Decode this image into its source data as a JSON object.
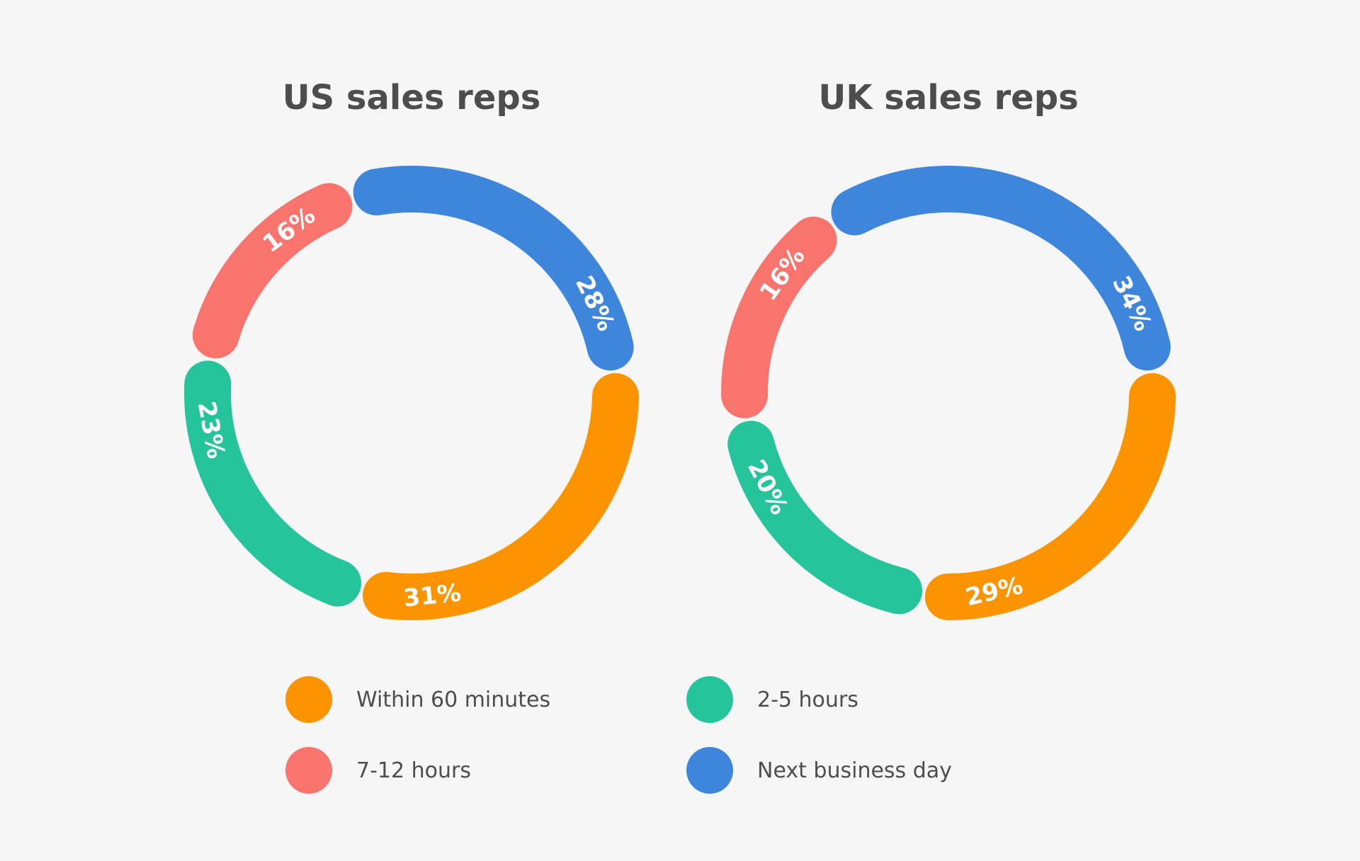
{
  "colors": {
    "background": "#f6f6f6",
    "title": "#4d4d4d",
    "slice_label": "#ffffff"
  },
  "legend": [
    {
      "label": "Within 60 minutes",
      "color": "#fb9400"
    },
    {
      "label": "2-5 hours",
      "color": "#26c49b"
    },
    {
      "label": "7-12 hours",
      "color": "#fa746e"
    },
    {
      "label": "Next business day",
      "color": "#3d86dc"
    }
  ],
  "chart_data": [
    {
      "type": "pie",
      "style": "donut",
      "title": "US sales reps",
      "categories": [
        "Within 60 minutes",
        "2-5 hours",
        "7-12 hours",
        "Next business day"
      ],
      "values": [
        31,
        23,
        16,
        28
      ],
      "labels": [
        "31%",
        "23%",
        "16%",
        "28%"
      ],
      "colors": [
        "#fb9400",
        "#26c49b",
        "#fa746e",
        "#3d86dc"
      ]
    },
    {
      "type": "pie",
      "style": "donut",
      "title": "UK sales reps",
      "categories": [
        "Within 60 minutes",
        "2-5 hours",
        "7-12 hours",
        "Next business day"
      ],
      "values": [
        29,
        20,
        16,
        34
      ],
      "labels": [
        "29%",
        "20%",
        "16%",
        "34%"
      ],
      "colors": [
        "#fb9400",
        "#26c49b",
        "#fa746e",
        "#3d86dc"
      ]
    }
  ]
}
